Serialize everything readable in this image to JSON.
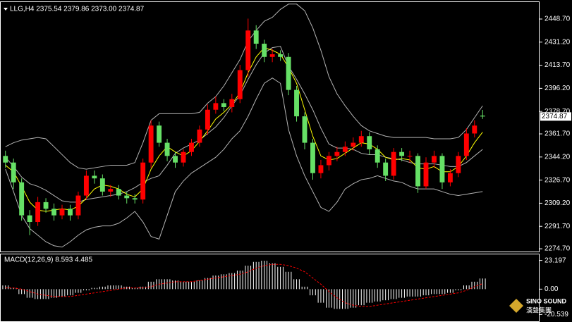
{
  "chart_data": [
    {
      "type": "candlestick",
      "title": "LLG,H4 2375.54 2379.86 2373.00 2374.87",
      "up_color": "#ff0000",
      "down_color": "#66e066",
      "open": [
        2345,
        2340,
        2325,
        2300,
        2295,
        2310,
        2305,
        2300,
        2305,
        2300,
        2315,
        2330,
        2328,
        2318,
        2320,
        2315,
        2313,
        2312,
        2340,
        2368,
        2355,
        2345,
        2340,
        2348,
        2355,
        2365,
        2380,
        2385,
        2382,
        2388,
        2410,
        2440,
        2430,
        2420,
        2422,
        2420,
        2395,
        2375,
        2355,
        2332,
        2338,
        2345,
        2348,
        2352,
        2355,
        2360,
        2350,
        2340,
        2330,
        2348,
        2345,
        2345,
        2322,
        2340,
        2345,
        2325,
        2332,
        2345,
        2362,
        2375.54
      ],
      "high": [
        2349,
        2343,
        2328,
        2304,
        2314,
        2313,
        2309,
        2308,
        2308,
        2318,
        2334,
        2334,
        2331,
        2323,
        2323,
        2318,
        2316,
        2343,
        2372,
        2371,
        2358,
        2348,
        2350,
        2358,
        2368,
        2384,
        2390,
        2388,
        2392,
        2414,
        2449,
        2444,
        2433,
        2426,
        2425,
        2423,
        2398,
        2378,
        2358,
        2342,
        2348,
        2352,
        2356,
        2359,
        2364,
        2363,
        2353,
        2343,
        2351,
        2351,
        2349,
        2347,
        2344,
        2349,
        2347,
        2335,
        2348,
        2366,
        2372,
        2379.86
      ],
      "low": [
        2336,
        2320,
        2296,
        2285,
        2292,
        2302,
        2296,
        2297,
        2296,
        2297,
        2312,
        2324,
        2315,
        2314,
        2312,
        2309,
        2309,
        2309,
        2336,
        2352,
        2341,
        2336,
        2337,
        2345,
        2352,
        2361,
        2377,
        2379,
        2378,
        2385,
        2405,
        2426,
        2416,
        2416,
        2417,
        2391,
        2371,
        2350,
        2327,
        2328,
        2334,
        2341,
        2345,
        2349,
        2352,
        2346,
        2336,
        2326,
        2327,
        2341,
        2340,
        2317,
        2320,
        2336,
        2320,
        2322,
        2329,
        2342,
        2359,
        2373
      ],
      "close": [
        2340,
        2325,
        2300,
        2295,
        2310,
        2305,
        2300,
        2305,
        2300,
        2315,
        2330,
        2328,
        2318,
        2320,
        2315,
        2313,
        2312,
        2340,
        2368,
        2355,
        2345,
        2340,
        2348,
        2355,
        2365,
        2380,
        2385,
        2382,
        2388,
        2410,
        2440,
        2430,
        2420,
        2422,
        2420,
        2395,
        2375,
        2355,
        2332,
        2338,
        2345,
        2348,
        2352,
        2355,
        2360,
        2350,
        2340,
        2330,
        2348,
        2345,
        2345,
        2322,
        2340,
        2345,
        2325,
        2332,
        2345,
        2362,
        2368,
        2374.87
      ],
      "lines": [
        {
          "color": "#b4b4b4",
          "values": [
            2352,
            2355,
            2357,
            2358,
            2359,
            2358,
            2352,
            2346,
            2340,
            2336,
            2335,
            2336,
            2337,
            2338,
            2338,
            2338,
            2340,
            2355,
            2372,
            2377,
            2377,
            2377,
            2377,
            2377,
            2378,
            2385,
            2390,
            2398,
            2408,
            2418,
            2432,
            2440,
            2447,
            2450,
            2456,
            2460,
            2460,
            2455,
            2442,
            2425,
            2405,
            2392,
            2383,
            2375,
            2368,
            2364,
            2362,
            2360,
            2359,
            2359,
            2359,
            2359,
            2359,
            2358,
            2358,
            2358,
            2359,
            2365,
            2374,
            2383
          ]
        },
        {
          "color": "#b4b4b4",
          "values": [
            2344,
            2337,
            2329,
            2324,
            2322,
            2319,
            2315,
            2311,
            2310,
            2310,
            2312,
            2313,
            2314,
            2315,
            2316,
            2318,
            2321,
            2325,
            2328,
            2330,
            2338,
            2347,
            2351,
            2354,
            2357,
            2362,
            2367,
            2374,
            2383,
            2391,
            2403,
            2414,
            2423,
            2427,
            2428,
            2413,
            2403,
            2392,
            2380,
            2366,
            2354,
            2351,
            2351,
            2350,
            2347,
            2346,
            2346,
            2344,
            2343,
            2342,
            2340,
            2339,
            2339,
            2339,
            2338,
            2337,
            2337,
            2340,
            2345,
            2350
          ]
        },
        {
          "color": "#b4b4b4",
          "values": [
            2335,
            2318,
            2300,
            2290,
            2285,
            2280,
            2277,
            2276,
            2280,
            2285,
            2289,
            2291,
            2292,
            2292,
            2294,
            2298,
            2303,
            2295,
            2284,
            2282,
            2300,
            2318,
            2326,
            2332,
            2336,
            2340,
            2344,
            2350,
            2358,
            2364,
            2375,
            2388,
            2400,
            2404,
            2400,
            2365,
            2345,
            2330,
            2318,
            2306,
            2303,
            2310,
            2320,
            2324,
            2327,
            2328,
            2330,
            2328,
            2326,
            2325,
            2322,
            2320,
            2320,
            2320,
            2318,
            2316,
            2315,
            2316,
            2317,
            2318
          ]
        },
        {
          "color": "#ffff00",
          "values": [
            2338,
            2333,
            2322,
            2310,
            2304,
            2303,
            2304,
            2305,
            2304,
            2307,
            2313,
            2320,
            2323,
            2322,
            2320,
            2316,
            2314,
            2320,
            2335,
            2345,
            2352,
            2348,
            2345,
            2349,
            2356,
            2364,
            2373,
            2378,
            2384,
            2393,
            2408,
            2420,
            2427,
            2425,
            2422,
            2412,
            2400,
            2380,
            2360,
            2345,
            2342,
            2343,
            2347,
            2351,
            2355,
            2354,
            2350,
            2344,
            2342,
            2343,
            2342,
            2336,
            2335,
            2337,
            2333,
            2333,
            2337,
            2345,
            2355,
            2363
          ]
        }
      ],
      "ylim": [
        2272.6,
        2461.5
      ],
      "yticks": [
        {
          "value": 2448.7,
          "label": "2448.70"
        },
        {
          "value": 2431.2,
          "label": "2431.20"
        },
        {
          "value": 2413.7,
          "label": "2413.70"
        },
        {
          "value": 2396.2,
          "label": "2396.20"
        },
        {
          "value": 2378.7,
          "label": "2378.70"
        },
        {
          "value": 2361.7,
          "label": "2361.70"
        },
        {
          "value": 2344.2,
          "label": "2344.20"
        },
        {
          "value": 2326.7,
          "label": "2326.70"
        },
        {
          "value": 2309.2,
          "label": "2309.20"
        },
        {
          "value": 2291.7,
          "label": "2291.70"
        },
        {
          "value": 2274.7,
          "label": "2274.70"
        }
      ]
    },
    {
      "type": "macd",
      "title": "MACD(12,26,9) 8.593 4.485",
      "histogram_color": "#ffffff",
      "signal_color": "#ff0000",
      "histogram": [
        3,
        1,
        -4,
        -7,
        -8,
        -8,
        -7,
        -6,
        -5,
        -3,
        -1,
        1,
        2,
        3,
        3,
        2,
        1,
        2,
        6,
        8,
        8,
        7,
        6,
        6,
        7,
        9,
        11,
        12,
        13,
        15,
        19,
        22,
        23,
        21,
        18,
        14,
        8,
        2,
        -5,
        -11,
        -15,
        -16,
        -16,
        -15,
        -13,
        -11,
        -10,
        -9,
        -8,
        -7,
        -6,
        -6,
        -5,
        -4,
        -4,
        -3,
        -1,
        3,
        6,
        8.593
      ],
      "signal": [
        1,
        1,
        0,
        -2,
        -4,
        -5,
        -6,
        -6,
        -6,
        -5,
        -4,
        -3,
        -2,
        -1,
        0,
        1,
        1,
        1,
        2,
        4,
        5,
        6,
        6,
        6,
        7,
        8,
        9,
        10,
        11,
        12,
        14,
        17,
        19,
        20,
        20,
        19,
        17,
        14,
        9,
        4,
        -2,
        -7,
        -11,
        -13,
        -14,
        -14,
        -13,
        -12,
        -11,
        -10,
        -9,
        -8,
        -7,
        -6,
        -5,
        -4,
        -3,
        -1,
        2,
        4.485
      ],
      "ylim": [
        -26.01,
        28.12
      ],
      "yticks": [
        23.197,
        {
          "value": 0,
          "label": "0.00"
        },
        -20.539
      ]
    }
  ],
  "watermark": {
    "name": "SINO SOUND",
    "subtitle": "漢聲集團"
  }
}
